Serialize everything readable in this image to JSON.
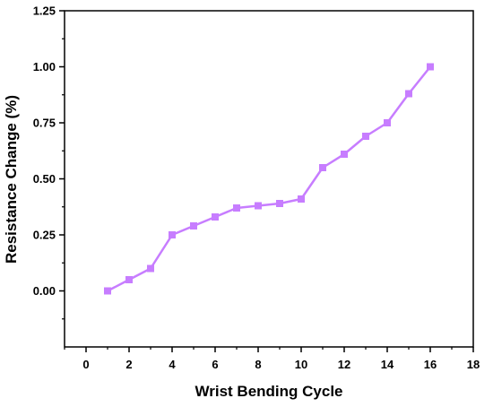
{
  "chart_data": {
    "type": "line",
    "xlabel": "Wrist Bending Cycle",
    "ylabel": "Resistance Change (%)",
    "xlim": [
      -1,
      18
    ],
    "ylim": [
      -0.25,
      1.25
    ],
    "x_ticks": [
      0,
      2,
      4,
      6,
      8,
      10,
      12,
      14,
      16,
      18
    ],
    "x_tick_labels": [
      "0",
      "2",
      "4",
      "6",
      "8",
      "10",
      "12",
      "14",
      "16",
      "18"
    ],
    "y_ticks": [
      0.0,
      0.25,
      0.5,
      0.75,
      1.0,
      1.25
    ],
    "y_tick_labels": [
      "0.00",
      "0.25",
      "0.50",
      "0.75",
      "1.00",
      "1.25"
    ],
    "grid": false,
    "legend": "none",
    "series": [
      {
        "color": "#c77dff",
        "marker": "square",
        "x": [
          1,
          2,
          3,
          4,
          5,
          6,
          7,
          8,
          9,
          10,
          11,
          12,
          13,
          14,
          15,
          16
        ],
        "y": [
          0.0,
          0.05,
          0.1,
          0.25,
          0.29,
          0.33,
          0.37,
          0.38,
          0.39,
          0.41,
          0.55,
          0.61,
          0.69,
          0.75,
          0.88,
          1.0
        ]
      }
    ]
  }
}
